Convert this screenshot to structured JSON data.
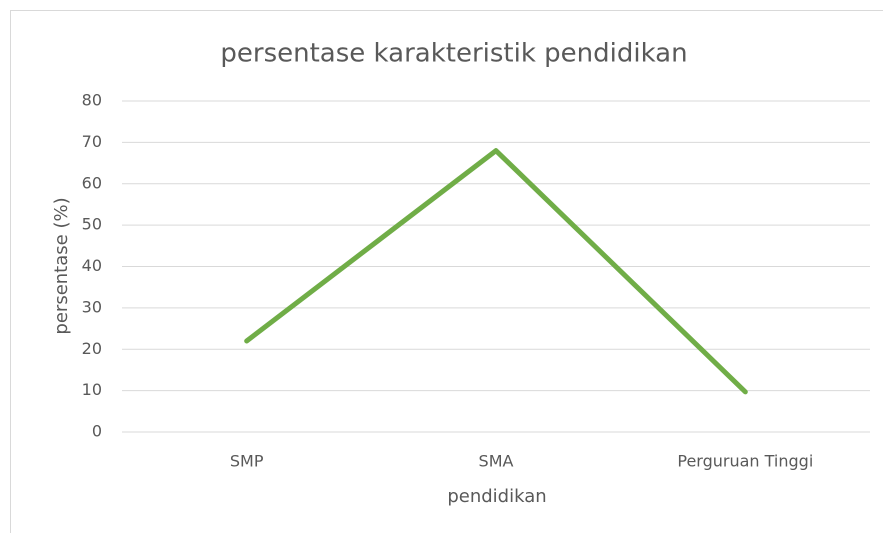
{
  "chart_data": {
    "type": "line",
    "title": "persentase karakteristik pendidikan",
    "x_label": "pendidikan",
    "y_label": "persentase (%)",
    "categories": [
      "SMP",
      "SMA",
      "Perguruan Tinggi"
    ],
    "series": [
      {
        "name": "persentase",
        "color": "#70ad47",
        "values": [
          22,
          68,
          9.7
        ]
      }
    ],
    "ylim": [
      0,
      80
    ],
    "yticks": [
      0,
      10,
      20,
      30,
      40,
      50,
      60,
      70,
      80
    ],
    "grid": true
  }
}
